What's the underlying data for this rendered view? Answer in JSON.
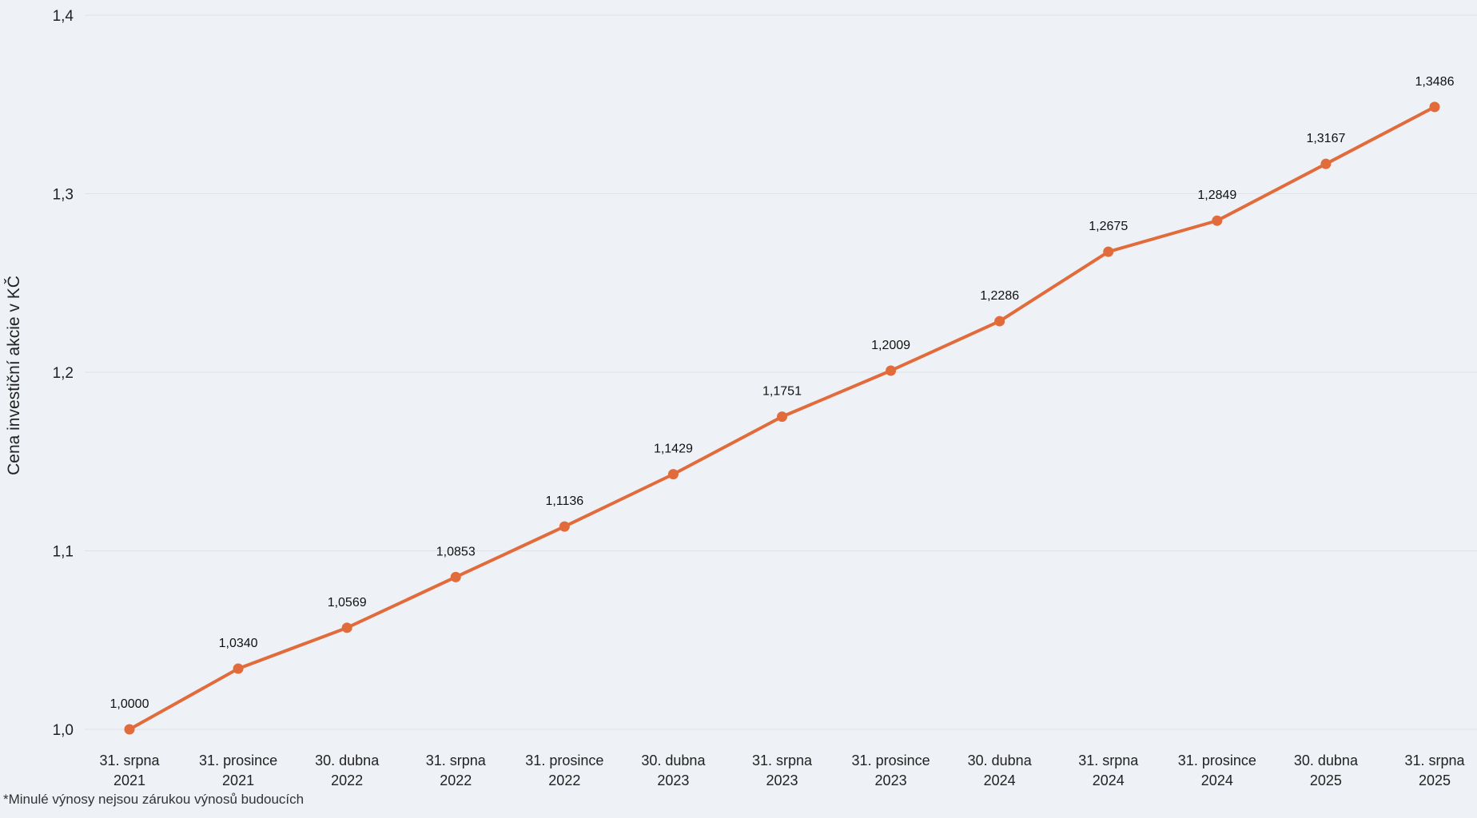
{
  "footnote": "*Minulé výnosy nejsou zárukou výnosů budoucích",
  "chart_data": {
    "type": "line",
    "title": "",
    "xlabel": "",
    "ylabel": "Cena investiční akcie v KČ",
    "ylim": [
      1.0,
      1.4
    ],
    "yticks": [
      "1,0",
      "1,1",
      "1,2",
      "1,3",
      "1,4"
    ],
    "ytick_values": [
      1.0,
      1.1,
      1.2,
      1.3,
      1.4
    ],
    "grid": true,
    "legend": "none",
    "line_color": "#e16b3a",
    "categories": [
      [
        "31. srpna",
        "2021"
      ],
      [
        "31. prosince",
        "2021"
      ],
      [
        "30. dubna",
        "2022"
      ],
      [
        "31. srpna",
        "2022"
      ],
      [
        "31. prosince",
        "2022"
      ],
      [
        "30. dubna",
        "2023"
      ],
      [
        "31. srpna",
        "2023"
      ],
      [
        "31. prosince",
        "2023"
      ],
      [
        "30. dubna",
        "2024"
      ],
      [
        "31. srpna",
        "2024"
      ],
      [
        "31. prosince",
        "2024"
      ],
      [
        "30. dubna",
        "2025"
      ],
      [
        "31. srpna",
        "2025"
      ]
    ],
    "values": [
      1.0,
      1.034,
      1.0569,
      1.0853,
      1.1136,
      1.1429,
      1.1751,
      1.2009,
      1.2286,
      1.2675,
      1.2849,
      1.3167,
      1.3486
    ],
    "data_labels": [
      "1,0000",
      "1,0340",
      "1,0569",
      "1,0853",
      "1,1136",
      "1,1429",
      "1,1751",
      "1,2009",
      "1,2286",
      "1,2675",
      "1,2849",
      "1,3167",
      "1,3486"
    ]
  }
}
